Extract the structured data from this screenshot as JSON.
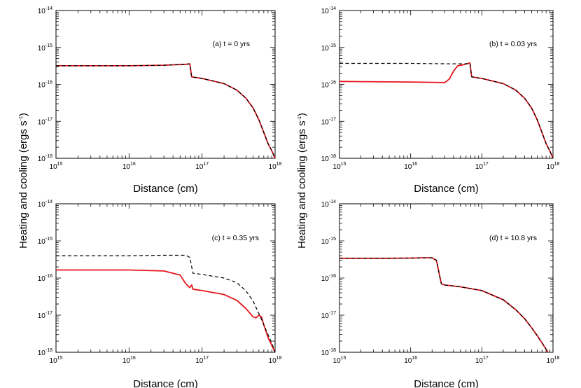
{
  "figure": {
    "ylabel_left": "Heating and cooling (ergs s",
    "ylabel_right": "Heating and cooling (ergs s",
    "ylabel_sup": "-1",
    "ylabel_close": ")",
    "ylabel_s": "s"
  },
  "chart_data": [
    {
      "type": "line",
      "title": "(a) t = 0 yrs",
      "xlabel": "Distance (cm)",
      "ylabel": "Heating and cooling (ergs s-1)",
      "xscale": "log",
      "yscale": "log",
      "xlim": [
        1000000000000000.0,
        1e+18
      ],
      "ylim": [
        1e-18,
        1e-14
      ],
      "xticks": [
        {
          "base": "10",
          "exp": "15"
        },
        {
          "base": "10",
          "exp": "16"
        },
        {
          "base": "10",
          "exp": "17"
        },
        {
          "base": "10",
          "exp": "18"
        }
      ],
      "yticks": [
        {
          "base": "10",
          "exp": "-18"
        },
        {
          "base": "10",
          "exp": "-17"
        },
        {
          "base": "10",
          "exp": "-16"
        },
        {
          "base": "10",
          "exp": "-15"
        },
        {
          "base": "10",
          "exp": "-14"
        }
      ],
      "series": [
        {
          "style": "solid",
          "color": "#e8141b",
          "x": [
            1000000000000000.0,
            1e+16,
            3e+16,
            6e+16,
            6.8e+16,
            7.2e+16,
            1e+17,
            2e+17,
            3e+17,
            4e+17,
            5e+17,
            6e+17,
            7e+17,
            8e+17,
            9e+17,
            1e+18
          ],
          "y": [
            3.2e-16,
            3.2e-16,
            3.3e-16,
            3.5e-16,
            3.6e-16,
            1.6e-16,
            1.45e-16,
            1.05e-16,
            7e-17,
            4.2e-17,
            2.3e-17,
            1.1e-17,
            5e-18,
            2.5e-18,
            1.6e-18,
            1e-18
          ]
        },
        {
          "style": "dashed",
          "color": "#000000",
          "x": [
            1000000000000000.0,
            1e+16,
            3e+16,
            6e+16,
            6.8e+16,
            7.2e+16,
            1e+17,
            2e+17,
            3e+17,
            4e+17,
            5e+17,
            6e+17,
            7e+17,
            8e+17,
            9e+17,
            1e+18
          ],
          "y": [
            3.2e-16,
            3.2e-16,
            3.3e-16,
            3.5e-16,
            3.6e-16,
            1.6e-16,
            1.45e-16,
            1.05e-16,
            7e-17,
            4.2e-17,
            2.3e-17,
            1.1e-17,
            5e-18,
            2.5e-18,
            1.6e-18,
            1e-18
          ]
        }
      ]
    },
    {
      "type": "line",
      "title": "(b) t = 0.03 yrs",
      "xlabel": "Distance (cm)",
      "ylabel": "Heating and cooling (ergs s-1)",
      "xscale": "log",
      "yscale": "log",
      "xlim": [
        1000000000000000.0,
        1e+18
      ],
      "ylim": [
        1e-18,
        1e-14
      ],
      "xticks": [
        {
          "base": "10",
          "exp": "15"
        },
        {
          "base": "10",
          "exp": "16"
        },
        {
          "base": "10",
          "exp": "17"
        },
        {
          "base": "10",
          "exp": "18"
        }
      ],
      "yticks": [
        {
          "base": "10",
          "exp": "-18"
        },
        {
          "base": "10",
          "exp": "-17"
        },
        {
          "base": "10",
          "exp": "-16"
        },
        {
          "base": "10",
          "exp": "-15"
        },
        {
          "base": "10",
          "exp": "-14"
        }
      ],
      "series": [
        {
          "style": "solid",
          "color": "#e8141b",
          "x": [
            1000000000000000.0,
            1e+16,
            3e+16,
            3.5e+16,
            4e+16,
            4.6e+16,
            5.5e+16,
            6.8e+16,
            7.2e+16,
            1e+17,
            2e+17,
            3e+17,
            4e+17,
            5e+17,
            6e+17,
            7e+17,
            8e+17,
            9e+17,
            1e+18
          ],
          "y": [
            1.2e-16,
            1.16e-16,
            1.12e-16,
            1.4e-16,
            2.3e-16,
            3.2e-16,
            3.4e-16,
            3.8e-16,
            1.6e-16,
            1.45e-16,
            1.05e-16,
            7e-17,
            4.2e-17,
            2.3e-17,
            1.1e-17,
            5e-18,
            2.5e-18,
            1.6e-18,
            1e-18
          ]
        },
        {
          "style": "dashed",
          "color": "#000000",
          "x": [
            1000000000000000.0,
            1e+16,
            4e+16,
            5.5e+16,
            6.8e+16,
            7.2e+16,
            1e+17,
            2e+17,
            3e+17,
            4e+17,
            5e+17,
            6e+17,
            7e+17,
            8e+17,
            9e+17,
            1e+18
          ],
          "y": [
            3.7e-16,
            3.7e-16,
            3.6e-16,
            3.6e-16,
            3.7e-16,
            1.6e-16,
            1.45e-16,
            1.05e-16,
            7e-17,
            4.2e-17,
            2.3e-17,
            1.1e-17,
            5e-18,
            2.5e-18,
            1.6e-18,
            1e-18
          ]
        }
      ]
    },
    {
      "type": "line",
      "title": "(c) t = 0.35 yrs",
      "xlabel": "Distance (cm)",
      "ylabel": "Heating and cooling (ergs s-1)",
      "xscale": "log",
      "yscale": "log",
      "xlim": [
        1000000000000000.0,
        1e+18
      ],
      "ylim": [
        1e-18,
        1e-14
      ],
      "xticks": [
        {
          "base": "10",
          "exp": "15"
        },
        {
          "base": "10",
          "exp": "16"
        },
        {
          "base": "10",
          "exp": "17"
        },
        {
          "base": "10",
          "exp": "18"
        }
      ],
      "yticks": [
        {
          "base": "10",
          "exp": "-18"
        },
        {
          "base": "10",
          "exp": "-17"
        },
        {
          "base": "10",
          "exp": "-16"
        },
        {
          "base": "10",
          "exp": "-15"
        },
        {
          "base": "10",
          "exp": "-14"
        }
      ],
      "series": [
        {
          "style": "solid",
          "color": "#e8141b",
          "x": [
            1000000000000000.0,
            1e+16,
            3e+16,
            5e+16,
            6e+16,
            6.8e+16,
            7.2e+16,
            7.5e+16,
            1e+17,
            2e+17,
            3e+17,
            4e+17,
            5e+17,
            5.5e+17,
            6e+17,
            6.5e+17,
            7e+17,
            8e+17,
            1e+18
          ],
          "y": [
            1.65e-16,
            1.65e-16,
            1.55e-16,
            1.2e-16,
            7e-17,
            5.5e-17,
            6.5e-17,
            5e-17,
            4.6e-17,
            3.6e-17,
            2.5e-17,
            1.5e-17,
            9e-18,
            8.5e-18,
            1e-17,
            9e-18,
            5.5e-18,
            2.5e-18,
            1e-18
          ]
        },
        {
          "style": "dashed",
          "color": "#000000",
          "x": [
            1000000000000000.0,
            1e+16,
            3e+16,
            6e+16,
            6.8e+16,
            7.5e+16,
            1e+17,
            2e+17,
            3e+17,
            4e+17,
            5e+17,
            6e+17,
            7e+17,
            8e+17,
            9e+17,
            1e+18
          ],
          "y": [
            4e-16,
            4e-16,
            4.1e-16,
            4.1e-16,
            3.6e-16,
            1.35e-16,
            1.25e-16,
            1e-16,
            7.5e-17,
            4.5e-17,
            2.4e-17,
            1.1e-17,
            5.5e-18,
            3e-18,
            1.8e-18,
            1e-18
          ]
        }
      ]
    },
    {
      "type": "line",
      "title": "(d) t = 10.8 yrs",
      "xlabel": "Distance (cm)",
      "ylabel": "Heating and cooling (ergs s-1)",
      "xscale": "log",
      "yscale": "log",
      "xlim": [
        1000000000000000.0,
        1e+18
      ],
      "ylim": [
        1e-18,
        1e-14
      ],
      "xticks": [
        {
          "base": "10",
          "exp": "15"
        },
        {
          "base": "10",
          "exp": "16"
        },
        {
          "base": "10",
          "exp": "17"
        },
        {
          "base": "10",
          "exp": "18"
        }
      ],
      "yticks": [
        {
          "base": "10",
          "exp": "-18"
        },
        {
          "base": "10",
          "exp": "-17"
        },
        {
          "base": "10",
          "exp": "-16"
        },
        {
          "base": "10",
          "exp": "-15"
        },
        {
          "base": "10",
          "exp": "-14"
        }
      ],
      "series": [
        {
          "style": "solid",
          "color": "#e8141b",
          "x": [
            1000000000000000.0,
            5000000000000000.0,
            1e+16,
            1.5e+16,
            2e+16,
            2.3e+16,
            2.5e+16,
            2.7e+16,
            3e+16,
            5e+16,
            1e+17,
            2e+17,
            3e+17,
            4e+17,
            5e+17,
            6e+17,
            7e+17,
            8e+17,
            1e+18
          ],
          "y": [
            3.4e-16,
            3.4e-16,
            3.45e-16,
            3.5e-16,
            3.5e-16,
            3e-16,
            1.4e-16,
            7e-17,
            6.5e-17,
            5.8e-17,
            4.6e-17,
            2.6e-17,
            1.4e-17,
            8e-18,
            4.6e-18,
            2.8e-18,
            1.8e-18,
            1.2e-18,
            6e-19
          ]
        },
        {
          "style": "dashed",
          "color": "#000000",
          "x": [
            1000000000000000.0,
            5000000000000000.0,
            1e+16,
            1.5e+16,
            2e+16,
            2.3e+16,
            2.5e+16,
            2.7e+16,
            3e+16,
            5e+16,
            1e+17,
            2e+17,
            3e+17,
            4e+17,
            5e+17,
            6e+17,
            7e+17,
            8e+17,
            1e+18
          ],
          "y": [
            3.4e-16,
            3.4e-16,
            3.45e-16,
            3.5e-16,
            3.5e-16,
            3e-16,
            1.4e-16,
            7e-17,
            6.5e-17,
            5.8e-17,
            4.6e-17,
            2.6e-17,
            1.4e-17,
            8e-18,
            4.6e-18,
            2.8e-18,
            1.8e-18,
            1.2e-18,
            6e-19
          ]
        }
      ]
    }
  ]
}
